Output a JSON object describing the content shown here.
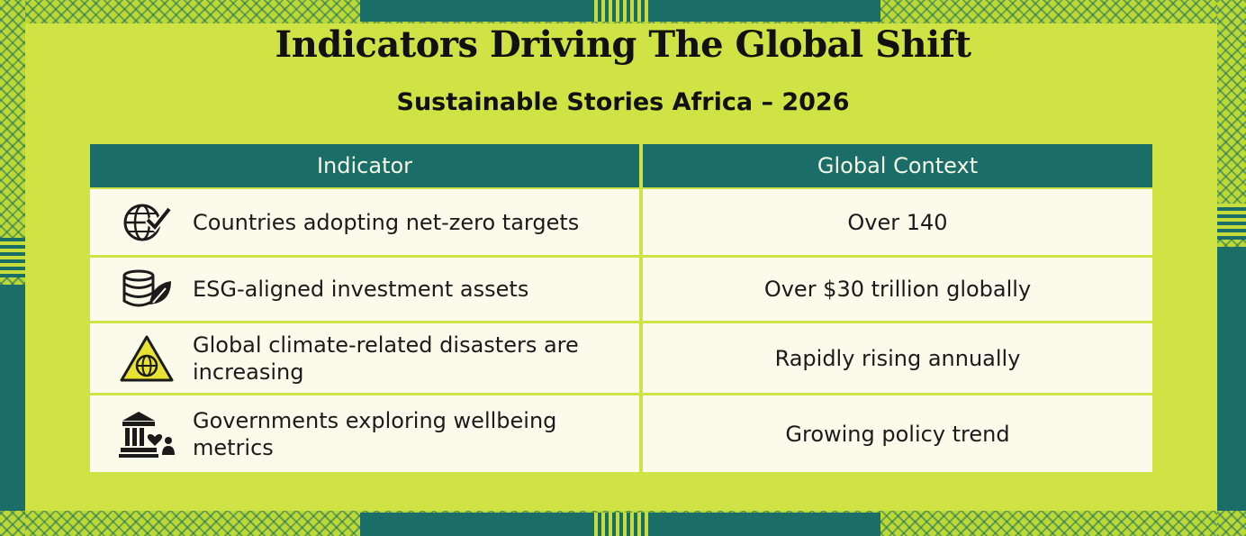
{
  "title": "Indicators Driving The Global Shift",
  "subtitle": "Sustainable Stories Africa – 2026",
  "colors": {
    "teal": "#1b6e68",
    "lime": "#c6de3c",
    "cell": "#fafbeb"
  },
  "table": {
    "headers": [
      "Indicator",
      "Global Context"
    ],
    "rows": [
      {
        "icon": "globe-check-icon",
        "indicator": "Countries adopting net-zero targets",
        "context": "Over 140"
      },
      {
        "icon": "coins-leaf-icon",
        "indicator": "ESG-aligned investment assets",
        "context": "Over $30 trillion globally"
      },
      {
        "icon": "warning-globe-icon",
        "indicator": "Global climate-related disasters are increasing",
        "context": "Rapidly rising annually"
      },
      {
        "icon": "government-wellbeing-icon",
        "indicator": "Governments exploring wellbeing metrics",
        "context": "Growing policy trend"
      }
    ]
  }
}
